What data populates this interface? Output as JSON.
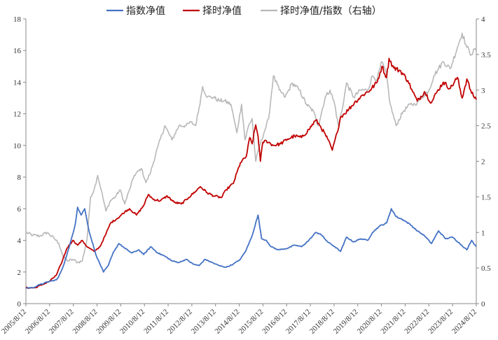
{
  "chart_data": {
    "type": "line",
    "title": "",
    "xlabel": "",
    "ylabel": "",
    "ylim_left": [
      0,
      18
    ],
    "ylim_right": [
      0,
      4
    ],
    "yticks_left": [
      "0",
      "2",
      "4",
      "6",
      "8",
      "10",
      "12",
      "14",
      "16",
      "18"
    ],
    "yticks_right": [
      "0",
      "0.5",
      "1",
      "1.5",
      "2",
      "2.5",
      "3",
      "3.5",
      "4"
    ],
    "x_tick_labels": [
      "2005/8/12",
      "2006/8/12",
      "2007/8/12",
      "2008/8/12",
      "2009/8/12",
      "2010/8/12",
      "2011/8/12",
      "2012/8/12",
      "2013/8/12",
      "2014/8/12",
      "2015/8/12",
      "2016/8/12",
      "2017/8/12",
      "2018/8/12",
      "2019/8/12",
      "2020/8/12",
      "2021/8/12",
      "2022/8/12",
      "2023/8/12",
      "2024/8/12"
    ],
    "legend_position": "top-center",
    "grid": false,
    "series": [
      {
        "name": "指数净值",
        "axis": "left",
        "color": "#4472C4",
        "x": [
          2005.61,
          2005.9,
          2006.2,
          2006.6,
          2006.9,
          2007.0,
          2007.2,
          2007.45,
          2007.7,
          2007.8,
          2007.95,
          2008.1,
          2008.3,
          2008.6,
          2008.9,
          2009.1,
          2009.3,
          2009.55,
          2009.8,
          2010.1,
          2010.4,
          2010.6,
          2010.9,
          2011.2,
          2011.5,
          2011.8,
          2012.1,
          2012.4,
          2012.7,
          2012.95,
          2013.2,
          2013.5,
          2013.8,
          2014.1,
          2014.4,
          2014.7,
          2014.95,
          2015.2,
          2015.45,
          2015.6,
          2015.8,
          2016.0,
          2016.3,
          2016.7,
          2017.0,
          2017.3,
          2017.6,
          2017.9,
          2018.1,
          2018.4,
          2018.7,
          2018.95,
          2019.2,
          2019.5,
          2019.8,
          2020.1,
          2020.3,
          2020.6,
          2020.9,
          2021.1,
          2021.3,
          2021.6,
          2021.9,
          2022.2,
          2022.5,
          2022.8,
          2023.1,
          2023.4,
          2023.7,
          2024.0,
          2024.3,
          2024.5,
          2024.7
        ],
        "values": [
          1.0,
          1.0,
          1.2,
          1.4,
          1.5,
          1.7,
          2.4,
          3.6,
          5.0,
          6.1,
          5.6,
          6.0,
          4.5,
          3.0,
          2.0,
          2.4,
          3.2,
          3.8,
          3.5,
          3.2,
          3.4,
          3.1,
          3.6,
          3.2,
          3.0,
          2.7,
          2.6,
          2.8,
          2.5,
          2.4,
          2.8,
          2.6,
          2.4,
          2.3,
          2.5,
          2.8,
          3.4,
          4.3,
          5.6,
          4.1,
          4.0,
          3.6,
          3.4,
          3.5,
          3.7,
          3.6,
          4.0,
          4.5,
          4.4,
          3.9,
          3.6,
          3.3,
          4.2,
          3.9,
          4.1,
          4.0,
          4.5,
          4.9,
          5.1,
          6.0,
          5.5,
          5.3,
          5.0,
          4.6,
          4.3,
          3.8,
          4.6,
          4.1,
          4.2,
          3.8,
          3.4,
          4.0,
          3.6
        ]
      },
      {
        "name": "择时净值",
        "axis": "left",
        "color": "#C00000",
        "x": [
          2005.61,
          2006.0,
          2006.3,
          2006.6,
          2006.9,
          2007.1,
          2007.35,
          2007.6,
          2007.8,
          2008.0,
          2008.2,
          2008.5,
          2008.75,
          2009.0,
          2009.2,
          2009.5,
          2009.8,
          2010.0,
          2010.3,
          2010.6,
          2010.8,
          2011.0,
          2011.3,
          2011.6,
          2011.9,
          2012.2,
          2012.5,
          2012.8,
          2013.0,
          2013.3,
          2013.6,
          2013.9,
          2014.1,
          2014.4,
          2014.7,
          2014.95,
          2015.1,
          2015.2,
          2015.35,
          2015.45,
          2015.55,
          2015.65,
          2015.8,
          2016.1,
          2016.4,
          2016.7,
          2017.0,
          2017.3,
          2017.6,
          2017.9,
          2018.1,
          2018.4,
          2018.6,
          2018.8,
          2018.95,
          2019.1,
          2019.3,
          2019.6,
          2019.9,
          2020.2,
          2020.5,
          2020.7,
          2020.9,
          2021.0,
          2021.2,
          2021.5,
          2021.8,
          2022.0,
          2022.2,
          2022.5,
          2022.8,
          2023.0,
          2023.3,
          2023.6,
          2023.9,
          2024.1,
          2024.3,
          2024.5,
          2024.7
        ],
        "values": [
          1.0,
          1.0,
          1.2,
          1.4,
          1.8,
          2.5,
          3.5,
          4.0,
          3.7,
          4.0,
          3.6,
          3.3,
          3.6,
          4.4,
          5.1,
          5.4,
          5.8,
          6.0,
          5.6,
          6.2,
          6.9,
          6.6,
          6.5,
          6.8,
          6.4,
          6.3,
          6.7,
          7.1,
          7.4,
          7.0,
          6.8,
          6.7,
          7.2,
          7.6,
          8.9,
          9.3,
          10.5,
          10.1,
          11.3,
          10.6,
          9.0,
          10.2,
          10.3,
          10.0,
          10.1,
          10.4,
          10.6,
          10.5,
          11.0,
          11.6,
          11.2,
          10.4,
          9.7,
          10.8,
          11.8,
          12.0,
          12.3,
          12.8,
          13.2,
          13.5,
          14.0,
          15.0,
          14.3,
          15.5,
          14.9,
          14.7,
          14.1,
          13.4,
          12.8,
          13.4,
          12.7,
          13.3,
          14.0,
          13.6,
          14.3,
          13.0,
          14.2,
          13.3,
          12.9
        ]
      },
      {
        "name": "择时净值/指数（右轴）",
        "axis": "right",
        "color": "#B8B8B8",
        "x": [
          2005.61,
          2005.9,
          2006.2,
          2006.5,
          2006.8,
          2007.0,
          2007.2,
          2007.4,
          2007.6,
          2007.8,
          2008.0,
          2008.2,
          2008.35,
          2008.5,
          2008.65,
          2008.8,
          2009.0,
          2009.2,
          2009.4,
          2009.6,
          2009.8,
          2010.0,
          2010.2,
          2010.5,
          2010.7,
          2010.9,
          2011.2,
          2011.5,
          2011.8,
          2012.1,
          2012.4,
          2012.6,
          2012.8,
          2012.95,
          2013.1,
          2013.3,
          2013.55,
          2013.8,
          2014.0,
          2014.3,
          2014.55,
          2014.75,
          2014.9,
          2015.05,
          2015.2,
          2015.35,
          2015.5,
          2015.7,
          2015.9,
          2016.1,
          2016.35,
          2016.6,
          2016.9,
          2017.2,
          2017.5,
          2017.8,
          2018.0,
          2018.3,
          2018.5,
          2018.7,
          2018.85,
          2019.0,
          2019.2,
          2019.5,
          2019.8,
          2020.1,
          2020.3,
          2020.5,
          2020.7,
          2020.9,
          2021.05,
          2021.3,
          2021.6,
          2021.9,
          2022.1,
          2022.4,
          2022.7,
          2022.9,
          2023.1,
          2023.3,
          2023.6,
          2023.9,
          2024.1,
          2024.3,
          2024.5,
          2024.7
        ],
        "values": [
          1.0,
          0.96,
          0.95,
          1.0,
          0.92,
          0.85,
          0.65,
          0.6,
          0.62,
          0.58,
          0.6,
          0.9,
          1.5,
          1.6,
          1.8,
          1.6,
          1.3,
          1.45,
          1.5,
          1.6,
          1.4,
          1.6,
          1.8,
          1.9,
          1.7,
          1.85,
          2.2,
          2.5,
          2.3,
          2.5,
          2.5,
          2.55,
          2.5,
          2.75,
          3.05,
          2.9,
          2.9,
          2.85,
          2.85,
          2.8,
          2.4,
          2.8,
          2.3,
          2.5,
          2.6,
          2.0,
          2.2,
          2.4,
          2.6,
          3.2,
          3.0,
          2.9,
          3.1,
          3.0,
          2.8,
          2.7,
          2.5,
          2.9,
          3.0,
          2.8,
          2.5,
          2.7,
          3.1,
          2.9,
          3.0,
          3.0,
          3.2,
          3.15,
          3.4,
          3.2,
          2.8,
          2.5,
          2.7,
          2.8,
          2.8,
          2.9,
          3.0,
          3.2,
          3.3,
          3.4,
          3.3,
          3.6,
          3.8,
          3.6,
          3.5,
          3.6
        ]
      }
    ]
  }
}
